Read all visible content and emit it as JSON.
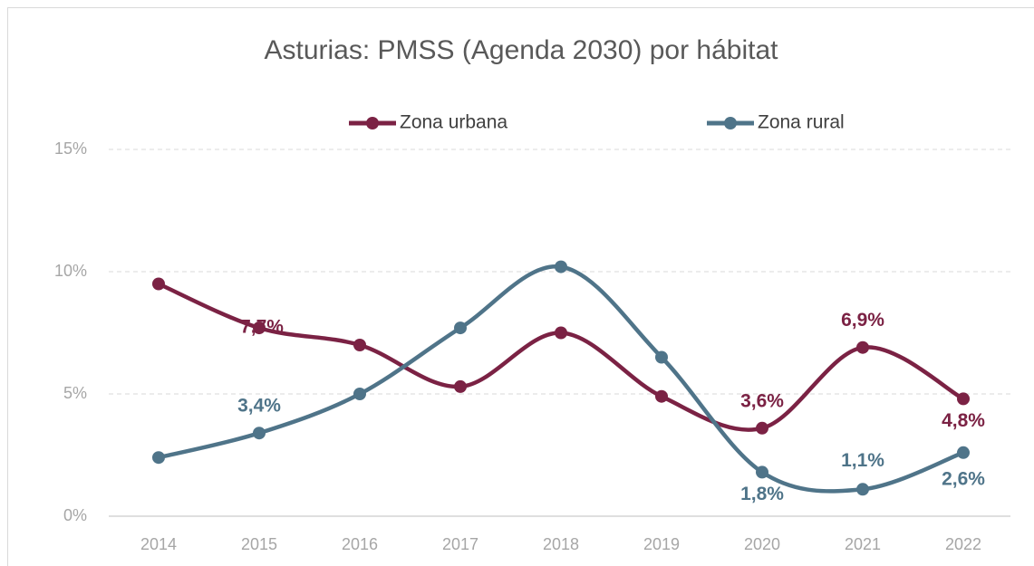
{
  "chart_data": {
    "type": "line",
    "title": "Asturias: PMSS (Agenda 2030) por hábitat",
    "categories": [
      "2014",
      "2015",
      "2016",
      "2017",
      "2018",
      "2019",
      "2020",
      "2021",
      "2022"
    ],
    "series": [
      {
        "name": "Zona urbana",
        "color": "#7b2244",
        "values": [
          9.5,
          7.7,
          7.0,
          5.3,
          7.5,
          4.9,
          3.6,
          6.9,
          4.8
        ],
        "value_labels": [
          null,
          "7,7%",
          null,
          null,
          null,
          null,
          "3,6%",
          "6,9%",
          "4,8%"
        ]
      },
      {
        "name": "Zona rural",
        "color": "#4f7489",
        "values": [
          2.4,
          3.4,
          5.0,
          7.7,
          10.2,
          6.5,
          1.8,
          1.1,
          2.6
        ],
        "value_labels": [
          null,
          "3,4%",
          null,
          null,
          null,
          null,
          "1,8%",
          "1,1%",
          "2,6%"
        ]
      }
    ],
    "ylim": [
      0,
      15
    ],
    "yticks": [
      {
        "value": 0,
        "label": "0%"
      },
      {
        "value": 5,
        "label": "5%"
      },
      {
        "value": 10,
        "label": "10%"
      },
      {
        "value": 15,
        "label": "15%"
      }
    ],
    "grid": true,
    "smooth": true,
    "legend": "top"
  }
}
